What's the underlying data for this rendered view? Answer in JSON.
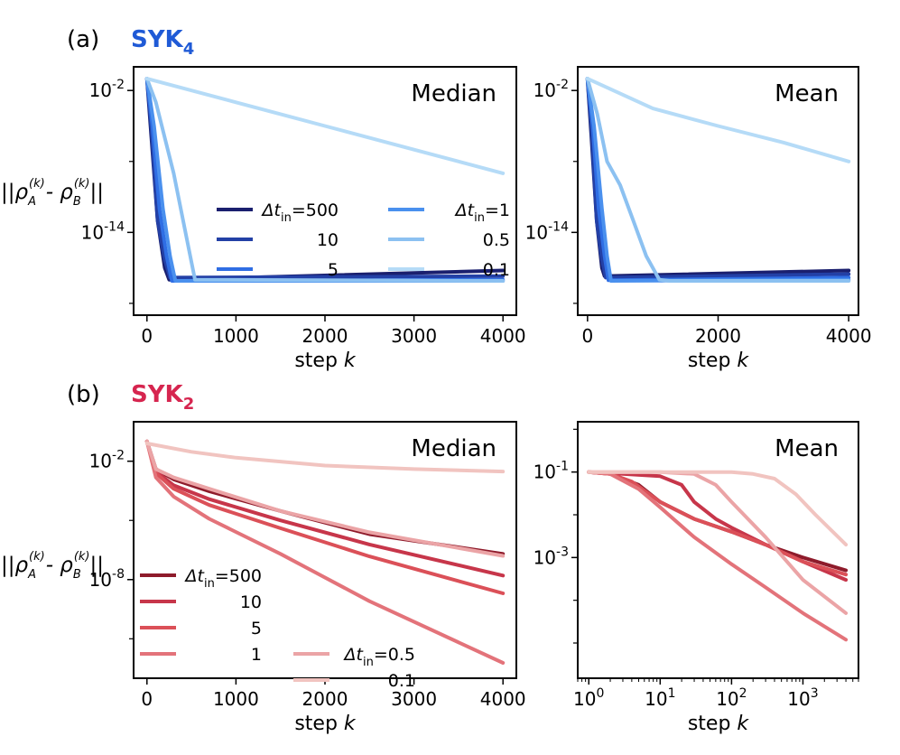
{
  "figure": {
    "panel_a": {
      "label": "(a)",
      "title_main": "SYK",
      "title_sub": "4",
      "color": "#1f5ad6"
    },
    "panel_b": {
      "label": "(b)",
      "title_main": "SYK",
      "title_sub": "2",
      "color": "#d6254f"
    },
    "ylabel_parts": [
      "||ρ",
      "A",
      "(k)",
      "- ρ",
      "B",
      "(k)",
      "||"
    ]
  },
  "chart_data": [
    {
      "id": "a-median",
      "type": "line",
      "title": "Median",
      "xlabel": "step k",
      "xscale": "linear",
      "yscale": "log",
      "xlim": [
        -150,
        4150
      ],
      "ylim": [
        1e-21,
        1.0
      ],
      "xticks": [
        0,
        1000,
        2000,
        3000,
        4000
      ],
      "xtick_labels": [
        "0",
        "1000",
        "2000",
        "3000",
        "4000"
      ],
      "yticks": [
        0.01,
        1e-14
      ],
      "ytick_labels": [
        [
          "10",
          "-2"
        ],
        [
          "10",
          "-14"
        ]
      ],
      "yminor": [
        1e-08,
        1e-20
      ],
      "legend": {
        "placement": "center-right",
        "columns": 2
      },
      "series": [
        {
          "name": "Δt_in=500",
          "label_left": "Δt",
          "label_sub": "in",
          "label_right": "=500",
          "color": "#1a1f6e",
          "x": [
            0,
            50,
            120,
            200,
            250,
            4000
          ],
          "y": [
            0.1,
            1e-06,
            1e-13,
            1e-17,
            1e-18,
            6e-18
          ]
        },
        {
          "name": "10",
          "label_left": "",
          "label_sub": "",
          "label_right": "10",
          "color": "#2340a6",
          "x": [
            0,
            50,
            120,
            200,
            260,
            4000
          ],
          "y": [
            0.1,
            5e-06,
            1e-13,
            5e-17,
            1.5e-18,
            2e-18
          ]
        },
        {
          "name": "5",
          "label_left": "",
          "label_sub": "",
          "label_right": "5",
          "color": "#2f6ee4",
          "x": [
            0,
            60,
            140,
            220,
            280,
            4000
          ],
          "y": [
            0.1,
            1e-05,
            1e-12,
            1e-16,
            8e-19,
            1e-18
          ]
        },
        {
          "name": "Δt_in=1",
          "label_left": "Δt",
          "label_sub": "in",
          "label_right": "=1",
          "color": "#4a90ee",
          "x": [
            0,
            80,
            180,
            260,
            320,
            4000
          ],
          "y": [
            0.1,
            1e-05,
            1e-12,
            1e-16,
            8e-19,
            8e-19
          ]
        },
        {
          "name": "0.5",
          "label_left": "",
          "label_sub": "",
          "label_right": "0.5",
          "color": "#8cc1f1",
          "x": [
            0,
            100,
            300,
            460,
            540,
            4000
          ],
          "y": [
            0.1,
            0.001,
            1e-09,
            1e-15,
            1e-18,
            8e-19
          ]
        },
        {
          "name": "0.1",
          "label_left": "",
          "label_sub": "",
          "label_right": "0.1",
          "color": "#b5dbf7",
          "x": [
            0,
            1000,
            2000,
            3000,
            4000
          ],
          "y": [
            0.1,
            0.001,
            1e-05,
            1e-07,
            1e-09
          ]
        }
      ]
    },
    {
      "id": "a-mean",
      "type": "line",
      "title": "Mean",
      "xlabel": "step k",
      "xscale": "linear",
      "yscale": "log",
      "xlim": [
        -150,
        4150
      ],
      "ylim": [
        1e-21,
        1.0
      ],
      "xticks": [
        0,
        2000,
        4000
      ],
      "xtick_labels": [
        "0",
        "2000",
        "4000"
      ],
      "yticks": [
        0.01,
        1e-14
      ],
      "ytick_labels": [
        [
          "10",
          "-2"
        ],
        [
          "10",
          "-14"
        ]
      ],
      "yminor": [
        1e-08,
        1e-20
      ],
      "series": [
        {
          "name": "Δt_in=500",
          "color": "#1a1f6e",
          "x": [
            0,
            60,
            140,
            220,
            260,
            4000
          ],
          "y": [
            0.1,
            1e-06,
            1e-13,
            1e-17,
            2e-18,
            6e-18
          ]
        },
        {
          "name": "10",
          "color": "#2340a6",
          "x": [
            0,
            60,
            140,
            220,
            280,
            4000
          ],
          "y": [
            0.1,
            5e-06,
            1e-13,
            5e-17,
            1.5e-18,
            3e-18
          ]
        },
        {
          "name": "5",
          "color": "#2f6ee4",
          "x": [
            0,
            80,
            170,
            260,
            320,
            4000
          ],
          "y": [
            0.1,
            1e-05,
            1e-12,
            1e-16,
            9e-19,
            1.5e-18
          ]
        },
        {
          "name": "Δt_in=1",
          "color": "#4a90ee",
          "x": [
            0,
            100,
            220,
            300,
            360,
            4000
          ],
          "y": [
            0.1,
            1e-05,
            1e-12,
            1e-16,
            8e-19,
            1e-18
          ]
        },
        {
          "name": "0.5",
          "color": "#8cc1f1",
          "x": [
            0,
            150,
            300,
            500,
            700,
            900,
            1100,
            1250,
            4000
          ],
          "y": [
            0.1,
            0.0001,
            1e-08,
            1e-10,
            1e-13,
            1e-16,
            1e-18,
            8e-19,
            8e-19
          ]
        },
        {
          "name": "0.1",
          "color": "#b5dbf7",
          "x": [
            0,
            1000,
            2000,
            3000,
            4000
          ],
          "y": [
            0.1,
            0.0003,
            1e-05,
            4e-07,
            1e-08
          ]
        }
      ]
    },
    {
      "id": "b-median",
      "type": "line",
      "title": "Median",
      "xlabel": "step k",
      "xscale": "linear",
      "yscale": "log",
      "xlim": [
        -150,
        4150
      ],
      "ylim": [
        1e-13,
        1.0
      ],
      "xticks": [
        0,
        1000,
        2000,
        3000,
        4000
      ],
      "xtick_labels": [
        "0",
        "1000",
        "2000",
        "3000",
        "4000"
      ],
      "yticks": [
        0.01,
        1e-08
      ],
      "ytick_labels": [
        [
          "10",
          "-2"
        ],
        [
          "10",
          "-8"
        ]
      ],
      "yminor": [
        1e-05,
        1e-11
      ],
      "legend": {
        "placement": "bottom-left",
        "columns": 2
      },
      "series": [
        {
          "name": "Δt_in=500",
          "label_left": "Δt",
          "label_sub": "in",
          "label_right": "=500",
          "color": "#8e1b2b",
          "x": [
            0,
            100,
            300,
            700,
            1500,
            2500,
            4000
          ],
          "y": [
            0.1,
            0.004,
            0.0012,
            0.0003,
            3e-05,
            2e-06,
            2e-07
          ]
        },
        {
          "name": "10",
          "label_left": "",
          "label_sub": "",
          "label_right": "10",
          "color": "#c7364a",
          "x": [
            0,
            100,
            300,
            700,
            1500,
            2500,
            4000
          ],
          "y": [
            0.1,
            0.003,
            0.0006,
            0.00012,
            1e-05,
            6e-07,
            1.6e-08
          ]
        },
        {
          "name": "5",
          "label_left": "",
          "label_sub": "",
          "label_right": "5",
          "color": "#db5058",
          "x": [
            0,
            100,
            300,
            700,
            1500,
            2500,
            4000
          ],
          "y": [
            0.1,
            0.0025,
            0.0004,
            6e-05,
            4e-06,
            1.5e-07,
            2e-09
          ]
        },
        {
          "name": "1",
          "label_left": "",
          "label_sub": "",
          "label_right": "1",
          "color": "#e3737a",
          "x": [
            0,
            100,
            300,
            700,
            1500,
            2500,
            4000
          ],
          "y": [
            0.1,
            0.0015,
            0.00016,
            1.2e-05,
            2e-07,
            8e-10,
            6e-13
          ]
        },
        {
          "name": "Δt_in=0.5",
          "label_left": "Δt",
          "label_sub": "in",
          "label_right": "=0.5",
          "color": "#eba4a6",
          "x": [
            0,
            100,
            300,
            700,
            1500,
            2500,
            4000
          ],
          "y": [
            0.1,
            0.004,
            0.0015,
            0.0004,
            3e-05,
            2.5e-06,
            1.6e-07
          ]
        },
        {
          "name": "0.1",
          "label_left": "",
          "label_sub": "",
          "label_right": "0.1",
          "color": "#f1c4c0",
          "x": [
            0,
            500,
            1000,
            2000,
            3000,
            4000
          ],
          "y": [
            0.08,
            0.03,
            0.015,
            0.006,
            0.004,
            0.003
          ]
        }
      ]
    },
    {
      "id": "b-mean",
      "type": "line",
      "title": "Mean",
      "xlabel": "step k",
      "xscale": "log",
      "yscale": "log",
      "xlim": [
        0.7,
        6000
      ],
      "ylim": [
        1.5e-06,
        1.5
      ],
      "xticks": [
        1,
        10,
        100,
        1000
      ],
      "xtick_labels": [
        [
          "10",
          "0"
        ],
        [
          "10",
          "1"
        ],
        [
          "10",
          "2"
        ],
        [
          "10",
          "3"
        ]
      ],
      "yticks": [
        0.1,
        0.001
      ],
      "ytick_labels": [
        [
          "10",
          "-1"
        ],
        [
          "10",
          "-3"
        ]
      ],
      "yminor": [
        1.0,
        0.01,
        0.0001,
        1e-05
      ],
      "series": [
        {
          "name": "Δt_in=500",
          "color": "#8e1b2b",
          "x": [
            1,
            2,
            5,
            10,
            30,
            100,
            300,
            1000,
            4000
          ],
          "y": [
            0.1,
            0.09,
            0.05,
            0.02,
            0.008,
            0.004,
            0.002,
            0.001,
            0.0005
          ]
        },
        {
          "name": "10",
          "color": "#c7364a",
          "x": [
            1,
            3,
            10,
            20,
            30,
            60,
            100,
            300,
            1000,
            4000
          ],
          "y": [
            0.1,
            0.09,
            0.08,
            0.05,
            0.02,
            0.008,
            0.005,
            0.002,
            0.0008,
            0.0003
          ]
        },
        {
          "name": "5",
          "color": "#db5058",
          "x": [
            1,
            2,
            4,
            10,
            30,
            100,
            300,
            1000,
            4000
          ],
          "y": [
            0.1,
            0.09,
            0.06,
            0.02,
            0.008,
            0.004,
            0.002,
            0.0008,
            0.0004
          ]
        },
        {
          "name": "1",
          "color": "#e3737a",
          "x": [
            1,
            2,
            5,
            10,
            30,
            100,
            300,
            1000,
            4000
          ],
          "y": [
            0.1,
            0.09,
            0.04,
            0.015,
            0.003,
            0.0007,
            0.0002,
            5e-05,
            1.2e-05
          ]
        },
        {
          "name": "Δt_in=0.5",
          "color": "#eba4a6",
          "x": [
            1,
            10,
            30,
            60,
            100,
            300,
            1000,
            4000
          ],
          "y": [
            0.1,
            0.1,
            0.09,
            0.05,
            0.02,
            0.003,
            0.0003,
            5e-05
          ]
        },
        {
          "name": "0.1",
          "color": "#f1c4c0",
          "x": [
            1,
            10,
            100,
            200,
            400,
            800,
            1500,
            4000
          ],
          "y": [
            0.1,
            0.1,
            0.1,
            0.09,
            0.07,
            0.03,
            0.01,
            0.002
          ]
        }
      ]
    }
  ]
}
